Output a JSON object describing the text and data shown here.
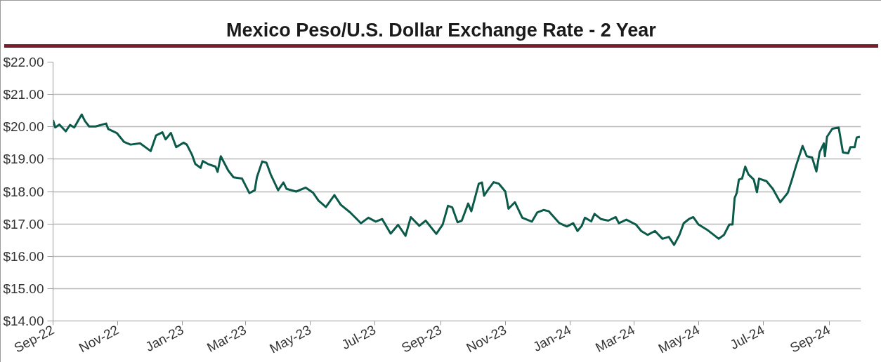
{
  "chart_data": {
    "type": "line",
    "title": "Mexico Peso/U.S. Dollar Exchange Rate - 2 Year",
    "x": [
      "2022-09-01",
      "2022-09-03",
      "2022-09-07",
      "2022-09-13",
      "2022-09-17",
      "2022-09-21",
      "2022-09-25",
      "2022-09-28",
      "2022-10-01",
      "2022-10-05",
      "2022-10-11",
      "2022-10-21",
      "2022-10-23",
      "2022-10-31",
      "2022-11-07",
      "2022-11-13",
      "2022-11-22",
      "2022-12-02",
      "2022-12-07",
      "2022-12-13",
      "2022-12-16",
      "2022-12-21",
      "2022-12-26",
      "2023-01-02",
      "2023-01-05",
      "2023-01-10",
      "2023-01-13",
      "2023-01-18",
      "2023-01-20",
      "2023-01-25",
      "2023-02-01",
      "2023-02-03",
      "2023-02-06",
      "2023-02-13",
      "2023-02-18",
      "2023-02-26",
      "2023-03-05",
      "2023-03-10",
      "2023-03-12",
      "2023-03-17",
      "2023-03-21",
      "2023-03-25",
      "2023-04-01",
      "2023-04-06",
      "2023-04-09",
      "2023-04-18",
      "2023-04-27",
      "2023-05-04",
      "2023-05-09",
      "2023-05-16",
      "2023-05-24",
      "2023-05-30",
      "2023-06-08",
      "2023-06-18",
      "2023-06-25",
      "2023-07-02",
      "2023-07-08",
      "2023-07-16",
      "2023-07-23",
      "2023-07-30",
      "2023-08-04",
      "2023-08-12",
      "2023-08-18",
      "2023-08-28",
      "2023-09-03",
      "2023-09-08",
      "2023-09-12",
      "2023-09-17",
      "2023-09-21",
      "2023-09-27",
      "2023-09-30",
      "2023-10-07",
      "2023-10-10",
      "2023-10-12",
      "2023-10-16",
      "2023-10-21",
      "2023-10-26",
      "2023-11-01",
      "2023-11-04",
      "2023-11-10",
      "2023-11-17",
      "2023-11-26",
      "2023-12-01",
      "2023-12-07",
      "2023-12-12",
      "2023-12-22",
      "2023-12-29",
      "2024-01-04",
      "2024-01-08",
      "2024-01-12",
      "2024-01-15",
      "2024-01-21",
      "2024-01-24",
      "2024-01-30",
      "2024-02-06",
      "2024-02-13",
      "2024-02-16",
      "2024-02-23",
      "2024-03-03",
      "2024-03-08",
      "2024-03-14",
      "2024-03-21",
      "2024-03-28",
      "2024-04-03",
      "2024-04-08",
      "2024-04-13",
      "2024-04-17",
      "2024-04-22",
      "2024-04-26",
      "2024-05-01",
      "2024-05-09",
      "2024-05-20",
      "2024-05-25",
      "2024-05-30",
      "2024-06-02",
      "2024-06-04",
      "2024-06-06",
      "2024-06-08",
      "2024-06-11",
      "2024-06-14",
      "2024-06-17",
      "2024-06-22",
      "2024-06-25",
      "2024-06-27",
      "2024-07-04",
      "2024-07-10",
      "2024-07-17",
      "2024-07-24",
      "2024-07-28",
      "2024-08-01",
      "2024-08-07",
      "2024-08-11",
      "2024-08-16",
      "2024-08-20",
      "2024-08-23",
      "2024-08-27",
      "2024-08-28",
      "2024-08-30",
      "2024-09-04",
      "2024-09-10",
      "2024-09-14",
      "2024-09-19",
      "2024-09-21",
      "2024-09-25",
      "2024-09-27",
      "2024-09-30"
    ],
    "series": [
      {
        "color": "#0b5a4a",
        "values": [
          20.21,
          19.98,
          20.07,
          19.86,
          20.06,
          19.98,
          20.21,
          20.38,
          20.18,
          20.01,
          20.01,
          20.1,
          19.93,
          19.81,
          19.53,
          19.45,
          19.49,
          19.25,
          19.73,
          19.83,
          19.61,
          19.81,
          19.37,
          19.51,
          19.45,
          19.13,
          18.85,
          18.73,
          18.94,
          18.85,
          18.77,
          18.61,
          19.09,
          18.65,
          18.44,
          18.4,
          17.95,
          18.04,
          18.44,
          18.93,
          18.89,
          18.53,
          18.04,
          18.28,
          18.08,
          18.0,
          18.12,
          17.96,
          17.72,
          17.52,
          17.89,
          17.59,
          17.35,
          17.02,
          17.19,
          17.07,
          17.15,
          16.7,
          16.97,
          16.63,
          17.21,
          16.94,
          17.1,
          16.69,
          16.98,
          17.56,
          17.51,
          17.05,
          17.1,
          17.63,
          17.39,
          18.24,
          18.28,
          17.87,
          18.07,
          18.29,
          18.24,
          18.0,
          17.47,
          17.67,
          17.19,
          17.07,
          17.35,
          17.43,
          17.39,
          17.02,
          16.92,
          17.02,
          16.78,
          16.94,
          17.19,
          17.08,
          17.31,
          17.15,
          17.1,
          17.21,
          17.02,
          17.13,
          16.98,
          16.78,
          16.66,
          16.78,
          16.54,
          16.6,
          16.35,
          16.66,
          17.02,
          17.15,
          17.21,
          16.98,
          16.82,
          16.54,
          16.66,
          16.98,
          16.98,
          17.8,
          17.96,
          18.37,
          18.4,
          18.77,
          18.53,
          18.37,
          17.98,
          18.4,
          18.32,
          18.08,
          17.67,
          17.96,
          18.37,
          18.81,
          19.41,
          19.09,
          19.05,
          18.62,
          19.21,
          19.49,
          19.09,
          19.69,
          19.94,
          19.98,
          19.21,
          19.18,
          19.37,
          19.37,
          19.67,
          19.69
        ]
      }
    ],
    "xlim": [
      "2022-09-01",
      "2024-10-01"
    ],
    "xticks": [
      {
        "value": "2022-09-01",
        "label": "Sep-22"
      },
      {
        "value": "2022-11-01",
        "label": "Nov-22"
      },
      {
        "value": "2023-01-01",
        "label": "Jan-23"
      },
      {
        "value": "2023-03-01",
        "label": "Mar-23"
      },
      {
        "value": "2023-05-01",
        "label": "May-23"
      },
      {
        "value": "2023-07-01",
        "label": "Jul-23"
      },
      {
        "value": "2023-09-01",
        "label": "Sep-23"
      },
      {
        "value": "2023-11-01",
        "label": "Nov-23"
      },
      {
        "value": "2024-01-01",
        "label": "Jan-24"
      },
      {
        "value": "2024-03-01",
        "label": "Mar-24"
      },
      {
        "value": "2024-05-01",
        "label": "May-24"
      },
      {
        "value": "2024-07-01",
        "label": "Jul-24"
      },
      {
        "value": "2024-09-01",
        "label": "Sep-24"
      }
    ],
    "ylim": [
      14,
      22
    ],
    "yticks": [
      {
        "value": 14,
        "label": "$14.00"
      },
      {
        "value": 15,
        "label": "$15.00"
      },
      {
        "value": 16,
        "label": "$16.00"
      },
      {
        "value": 17,
        "label": "$17.00"
      },
      {
        "value": 18,
        "label": "$18.00"
      },
      {
        "value": 19,
        "label": "$19.00"
      },
      {
        "value": 20,
        "label": "$20.00"
      },
      {
        "value": 21,
        "label": "$21.00"
      },
      {
        "value": 22,
        "label": "$22.00"
      }
    ],
    "grid": "y",
    "marker": "none",
    "line_style": "solid"
  }
}
